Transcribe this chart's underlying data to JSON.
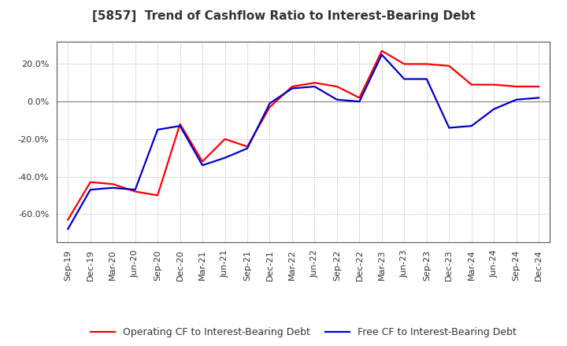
{
  "title": "[5857]  Trend of Cashflow Ratio to Interest-Bearing Debt",
  "x_labels": [
    "Sep-19",
    "Dec-19",
    "Mar-20",
    "Jun-20",
    "Sep-20",
    "Dec-20",
    "Mar-21",
    "Jun-21",
    "Sep-21",
    "Dec-21",
    "Mar-22",
    "Jun-22",
    "Sep-22",
    "Dec-22",
    "Mar-23",
    "Jun-23",
    "Sep-23",
    "Dec-23",
    "Mar-24",
    "Jun-24",
    "Sep-24",
    "Dec-24"
  ],
  "operating_cf": [
    -0.63,
    -0.43,
    -0.44,
    -0.48,
    -0.5,
    -0.12,
    -0.32,
    -0.2,
    -0.24,
    -0.03,
    0.08,
    0.1,
    0.08,
    0.02,
    0.27,
    0.2,
    0.2,
    0.19,
    0.09,
    0.09,
    0.08,
    0.08
  ],
  "free_cf": [
    -0.68,
    -0.47,
    -0.46,
    -0.47,
    -0.15,
    -0.13,
    -0.34,
    -0.3,
    -0.25,
    -0.01,
    0.07,
    0.08,
    0.01,
    0.0,
    0.25,
    0.12,
    0.12,
    -0.14,
    -0.13,
    -0.04,
    0.01,
    0.02
  ],
  "operating_cf_color": "#ff0000",
  "free_cf_color": "#0000cc",
  "ylim": [
    -0.75,
    0.32
  ],
  "yticks": [
    -0.6,
    -0.4,
    -0.2,
    0.0,
    0.2
  ],
  "background_color": "#ffffff",
  "plot_bg_color": "#ffffff",
  "grid_color": "#aaaaaa",
  "legend_op": "Operating CF to Interest-Bearing Debt",
  "legend_free": "Free CF to Interest-Bearing Debt",
  "line_width": 1.6,
  "title_color": "#333333",
  "title_fontsize": 11,
  "tick_fontsize": 8,
  "border_color": "#555555"
}
